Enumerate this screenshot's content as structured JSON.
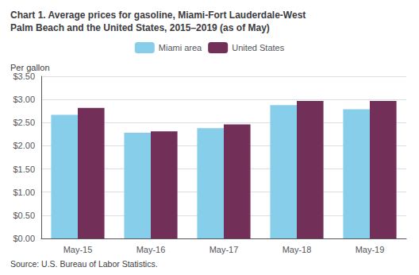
{
  "chart_data": {
    "type": "bar",
    "title": "Chart 1. Average prices for gasoline, Miami-Fort Lauderdale-West\nPalm Beach and the United States, 2015–2019 (as of May)",
    "ylabel": "Per gallon",
    "annotations": [
      "Source: U.S. Bureau of Labor Statistics."
    ],
    "categories": [
      "May-15",
      "May-16",
      "May-17",
      "May-18",
      "May-19"
    ],
    "series": [
      {
        "name": "Miami area",
        "color": "#87CEEB",
        "values": [
          2.67,
          2.28,
          2.38,
          2.88,
          2.79
        ]
      },
      {
        "name": "United States",
        "color": "#722F57",
        "values": [
          2.82,
          2.31,
          2.46,
          2.97,
          2.97
        ]
      }
    ],
    "ylim": [
      0.0,
      3.5
    ],
    "yticks": [
      {
        "value": 0.0,
        "label": "$0.00"
      },
      {
        "value": 0.5,
        "label": "$0.50"
      },
      {
        "value": 1.0,
        "label": "$1.00"
      },
      {
        "value": 1.5,
        "label": "$1.50"
      },
      {
        "value": 2.0,
        "label": "$2.00"
      },
      {
        "value": 2.5,
        "label": "$2.50"
      },
      {
        "value": 3.0,
        "label": "$3.00"
      },
      {
        "value": 3.5,
        "label": "$3.50"
      }
    ],
    "grid": true,
    "legend": "top"
  }
}
